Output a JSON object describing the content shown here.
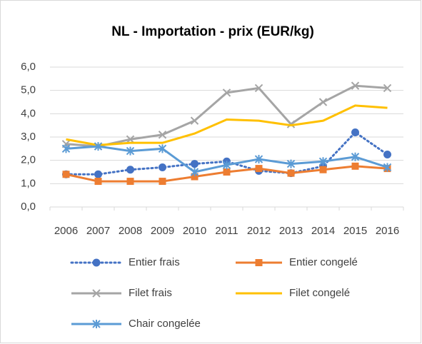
{
  "chart_data": {
    "type": "line",
    "title": "NL - Importation - prix (EUR/kg)",
    "categories": [
      "2006",
      "2007",
      "2008",
      "2009",
      "2010",
      "2011",
      "2012",
      "2013",
      "2014",
      "2015",
      "2016"
    ],
    "ylim": [
      0,
      6
    ],
    "yticks": [
      {
        "value": 0,
        "label": "0,0"
      },
      {
        "value": 1,
        "label": "1,0"
      },
      {
        "value": 2,
        "label": "2,0"
      },
      {
        "value": 3,
        "label": "3,0"
      },
      {
        "value": 4,
        "label": "4,0"
      },
      {
        "value": 5,
        "label": "5,0"
      },
      {
        "value": 6,
        "label": "6,0"
      }
    ],
    "grid": true,
    "series": [
      {
        "name": "Entier frais",
        "color": "#4472c4",
        "marker": "circle",
        "dash": "dotted",
        "values": [
          1.4,
          1.4,
          1.6,
          1.7,
          1.85,
          1.95,
          1.55,
          1.45,
          1.75,
          3.2,
          2.25
        ]
      },
      {
        "name": "Entier congelé",
        "color": "#ed7d31",
        "marker": "square",
        "dash": "solid",
        "values": [
          1.4,
          1.1,
          1.1,
          1.1,
          1.3,
          1.5,
          1.65,
          1.45,
          1.6,
          1.75,
          1.65
        ]
      },
      {
        "name": "Filet frais",
        "color": "#a5a5a5",
        "marker": "x",
        "dash": "solid",
        "values": [
          2.7,
          2.6,
          2.9,
          3.1,
          3.7,
          4.9,
          5.1,
          3.55,
          4.5,
          5.2,
          5.1
        ]
      },
      {
        "name": "Filet congelé",
        "color": "#ffc000",
        "marker": "none",
        "dash": "solid",
        "values": [
          2.9,
          2.65,
          2.75,
          2.75,
          3.15,
          3.75,
          3.7,
          3.5,
          3.7,
          4.35,
          4.25
        ]
      },
      {
        "name": "Chair congelée",
        "color": "#5b9bd5",
        "marker": "star",
        "dash": "solid",
        "values": [
          2.5,
          2.6,
          2.4,
          2.5,
          1.5,
          1.8,
          2.05,
          1.85,
          1.95,
          2.15,
          1.7
        ]
      }
    ]
  }
}
